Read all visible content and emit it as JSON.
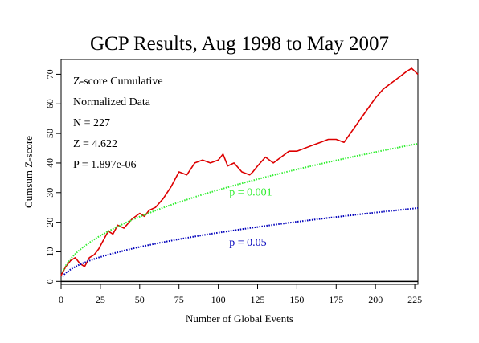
{
  "chart_data": {
    "type": "line",
    "title": "GCP Results, Aug 1998 to May 2007",
    "xlabel": "Number of Global Events",
    "ylabel": "Cumsum Z-score",
    "xlim": [
      0,
      227
    ],
    "ylim": [
      -1,
      75
    ],
    "xticks": [
      0,
      25,
      50,
      75,
      100,
      125,
      150,
      175,
      200,
      225
    ],
    "yticks": [
      0,
      10,
      20,
      30,
      40,
      50,
      60,
      70
    ],
    "grid": false,
    "stats": [
      "Z-score Cumulative",
      "Normalized Data",
      "N = 227",
      "Z = 4.622",
      "P = 1.897e-06"
    ],
    "series": [
      {
        "color": "#dd0000",
        "x": [
          0,
          3,
          6,
          9,
          12,
          15,
          18,
          21,
          24,
          27,
          30,
          33,
          36,
          40,
          45,
          50,
          53,
          56,
          60,
          65,
          70,
          75,
          80,
          85,
          90,
          95,
          100,
          103,
          106,
          110,
          115,
          120,
          122,
          125,
          130,
          135,
          140,
          145,
          150,
          155,
          160,
          165,
          170,
          175,
          180,
          184,
          188,
          192,
          196,
          200,
          205,
          210,
          215,
          220,
          223,
          227
        ],
        "y": [
          2,
          5,
          7,
          8,
          6,
          5,
          8,
          9,
          11,
          14,
          17,
          16,
          19,
          18,
          21,
          23,
          22,
          24,
          25,
          28,
          32,
          37,
          36,
          40,
          41,
          40,
          41,
          43,
          39,
          40,
          37,
          36,
          37,
          39,
          42,
          40,
          42,
          44,
          44,
          45,
          46,
          47,
          48,
          48,
          47,
          50,
          53,
          56,
          59,
          62,
          65,
          67,
          69,
          71,
          72,
          70
        ]
      },
      {
        "name": "p = 0.001",
        "color": "#33ee33",
        "style": "dotted",
        "formula": "3.09*sqrt(N)",
        "label_at": [
          107,
          29
        ]
      },
      {
        "name": "p = 0.05",
        "color": "#0000bb",
        "style": "dotted",
        "formula": "1.645*sqrt(N)",
        "label_at": [
          107,
          12
        ]
      }
    ]
  }
}
